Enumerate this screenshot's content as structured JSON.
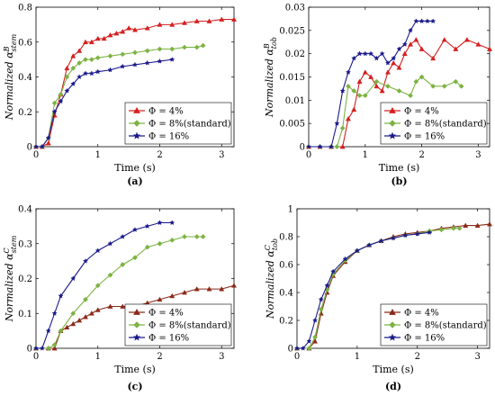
{
  "chart_data": [
    {
      "type": "line",
      "panel_label": "(a)",
      "xlabel": "Time (s)",
      "ylabel": "Normalized α",
      "ylabel_sup": "B",
      "ylabel_sub": "stem",
      "xlim": [
        0,
        3.2
      ],
      "ylim": [
        0,
        0.8
      ],
      "xticks": [
        "0",
        "1",
        "2",
        "3"
      ],
      "xtick_values": [
        0,
        1,
        2,
        3
      ],
      "yticks": [
        "0",
        "0.2",
        "0.4",
        "0.6",
        "0.8"
      ],
      "ytick_values": [
        0,
        0.2,
        0.4,
        0.6,
        0.8
      ],
      "legend_position": "bottom-right",
      "series": [
        {
          "name": "Φ = 4%",
          "color": "#d42020",
          "marker": "triangle",
          "x": [
            0,
            0.1,
            0.2,
            0.3,
            0.4,
            0.5,
            0.6,
            0.7,
            0.8,
            0.9,
            1.0,
            1.1,
            1.2,
            1.3,
            1.4,
            1.5,
            1.6,
            1.8,
            2.0,
            2.2,
            2.4,
            2.6,
            2.8,
            3.0,
            3.2
          ],
          "y": [
            0,
            0,
            0.02,
            0.18,
            0.3,
            0.45,
            0.52,
            0.55,
            0.6,
            0.6,
            0.62,
            0.62,
            0.64,
            0.65,
            0.66,
            0.68,
            0.67,
            0.68,
            0.7,
            0.7,
            0.71,
            0.72,
            0.72,
            0.73,
            0.73
          ]
        },
        {
          "name": "Φ = 8%(standard)",
          "color": "#7cb342",
          "marker": "diamond",
          "x": [
            0,
            0.1,
            0.2,
            0.3,
            0.4,
            0.5,
            0.6,
            0.7,
            0.8,
            0.9,
            1.0,
            1.2,
            1.4,
            1.6,
            1.8,
            2.0,
            2.2,
            2.4,
            2.6,
            2.7
          ],
          "y": [
            0,
            0,
            0.05,
            0.25,
            0.3,
            0.4,
            0.45,
            0.48,
            0.5,
            0.5,
            0.51,
            0.52,
            0.53,
            0.54,
            0.55,
            0.56,
            0.56,
            0.57,
            0.57,
            0.58
          ]
        },
        {
          "name": "Φ = 16%",
          "color": "#1a1a8c",
          "marker": "star",
          "x": [
            0,
            0.1,
            0.2,
            0.3,
            0.4,
            0.5,
            0.6,
            0.7,
            0.8,
            0.9,
            1.0,
            1.2,
            1.4,
            1.6,
            1.8,
            2.0,
            2.2
          ],
          "y": [
            0,
            0,
            0.05,
            0.2,
            0.26,
            0.32,
            0.36,
            0.4,
            0.42,
            0.42,
            0.43,
            0.44,
            0.46,
            0.47,
            0.48,
            0.49,
            0.5
          ]
        }
      ]
    },
    {
      "type": "line",
      "panel_label": "(b)",
      "xlabel": "Time (s)",
      "ylabel": "Normalized α",
      "ylabel_sup": "B",
      "ylabel_sub": "tob",
      "xlim": [
        0,
        3.2
      ],
      "ylim": [
        0,
        0.03
      ],
      "xticks": [
        "0",
        "1",
        "2",
        "3"
      ],
      "xtick_values": [
        0,
        1,
        2,
        3
      ],
      "yticks": [
        "0",
        "0.005",
        "0.01",
        "0.015",
        "0.02",
        "0.025",
        "0.03"
      ],
      "ytick_values": [
        0,
        0.005,
        0.01,
        0.015,
        0.02,
        0.025,
        0.03
      ],
      "legend_position": "bottom-right",
      "series": [
        {
          "name": "Φ = 4%",
          "color": "#d42020",
          "marker": "triangle",
          "x": [
            0,
            0.2,
            0.4,
            0.6,
            0.7,
            0.8,
            0.9,
            1.0,
            1.1,
            1.2,
            1.3,
            1.4,
            1.5,
            1.6,
            1.7,
            1.8,
            1.9,
            2.0,
            2.2,
            2.4,
            2.6,
            2.8,
            3.0,
            3.2
          ],
          "y": [
            0,
            0,
            0,
            0,
            0.006,
            0.008,
            0.014,
            0.016,
            0.015,
            0.013,
            0.012,
            0.016,
            0.018,
            0.017,
            0.02,
            0.022,
            0.023,
            0.021,
            0.019,
            0.023,
            0.021,
            0.023,
            0.022,
            0.021
          ]
        },
        {
          "name": "Φ = 8%(standard)",
          "color": "#7cb342",
          "marker": "diamond",
          "x": [
            0,
            0.2,
            0.4,
            0.5,
            0.6,
            0.7,
            0.8,
            0.9,
            1.0,
            1.2,
            1.4,
            1.6,
            1.8,
            1.9,
            2.0,
            2.2,
            2.4,
            2.6,
            2.7
          ],
          "y": [
            0,
            0,
            0,
            0,
            0.004,
            0.013,
            0.012,
            0.011,
            0.011,
            0.014,
            0.013,
            0.012,
            0.011,
            0.014,
            0.015,
            0.013,
            0.013,
            0.014,
            0.013
          ]
        },
        {
          "name": "Φ = 16%",
          "color": "#1a1a8c",
          "marker": "star",
          "x": [
            0,
            0.2,
            0.4,
            0.5,
            0.6,
            0.7,
            0.8,
            0.9,
            1.0,
            1.1,
            1.2,
            1.3,
            1.4,
            1.5,
            1.6,
            1.7,
            1.8,
            1.9,
            2.0,
            2.1,
            2.2
          ],
          "y": [
            0,
            0,
            0,
            0.005,
            0.012,
            0.016,
            0.019,
            0.02,
            0.02,
            0.02,
            0.019,
            0.02,
            0.018,
            0.019,
            0.021,
            0.022,
            0.025,
            0.027,
            0.027,
            0.027,
            0.027
          ]
        }
      ]
    },
    {
      "type": "line",
      "panel_label": "(c)",
      "xlabel": "Time (s)",
      "ylabel": "Normalized α",
      "ylabel_sup": "C",
      "ylabel_sub": "stem",
      "xlim": [
        0,
        3.2
      ],
      "ylim": [
        0,
        0.4
      ],
      "xticks": [
        "0",
        "1",
        "2",
        "3"
      ],
      "xtick_values": [
        0,
        1,
        2,
        3
      ],
      "yticks": [
        "0",
        "0.1",
        "0.2",
        "0.3",
        "0.4"
      ],
      "ytick_values": [
        0,
        0.1,
        0.2,
        0.3,
        0.4
      ],
      "legend_position": "bottom-right",
      "series": [
        {
          "name": "Φ = 4%",
          "color": "#8b2a1a",
          "marker": "triangle",
          "x": [
            0,
            0.2,
            0.3,
            0.4,
            0.5,
            0.6,
            0.7,
            0.8,
            0.9,
            1.0,
            1.2,
            1.4,
            1.6,
            1.8,
            2.0,
            2.2,
            2.4,
            2.6,
            2.8,
            3.0,
            3.2
          ],
          "y": [
            0,
            0,
            0,
            0.05,
            0.06,
            0.07,
            0.08,
            0.09,
            0.1,
            0.11,
            0.12,
            0.12,
            0.12,
            0.13,
            0.14,
            0.15,
            0.16,
            0.17,
            0.17,
            0.17,
            0.18
          ]
        },
        {
          "name": "Φ = 8%(standard)",
          "color": "#7cb342",
          "marker": "diamond",
          "x": [
            0,
            0.2,
            0.3,
            0.4,
            0.6,
            0.8,
            1.0,
            1.2,
            1.4,
            1.6,
            1.8,
            2.0,
            2.2,
            2.4,
            2.6,
            2.7
          ],
          "y": [
            0,
            0,
            0.01,
            0.05,
            0.1,
            0.14,
            0.18,
            0.21,
            0.24,
            0.26,
            0.29,
            0.3,
            0.31,
            0.32,
            0.32,
            0.32
          ]
        },
        {
          "name": "Φ = 16%",
          "color": "#1a1a8c",
          "marker": "star",
          "x": [
            0,
            0.1,
            0.2,
            0.3,
            0.4,
            0.6,
            0.8,
            1.0,
            1.2,
            1.4,
            1.6,
            1.8,
            2.0,
            2.2
          ],
          "y": [
            0,
            0,
            0.05,
            0.1,
            0.15,
            0.2,
            0.25,
            0.28,
            0.3,
            0.32,
            0.34,
            0.35,
            0.36,
            0.36
          ]
        }
      ]
    },
    {
      "type": "line",
      "panel_label": "(d)",
      "xlabel": "Time (s)",
      "ylabel": "Normalized α",
      "ylabel_sup": "C",
      "ylabel_sub": "tob",
      "xlim": [
        0,
        3.2
      ],
      "ylim": [
        0,
        1
      ],
      "xticks": [
        "0",
        "1",
        "2",
        "3"
      ],
      "xtick_values": [
        0,
        1,
        2,
        3
      ],
      "yticks": [
        "0",
        "0.2",
        "0.4",
        "0.6",
        "0.8",
        "1"
      ],
      "ytick_values": [
        0,
        0.2,
        0.4,
        0.6,
        0.8,
        1
      ],
      "legend_position": "bottom-right",
      "series": [
        {
          "name": "Φ = 4%",
          "color": "#8b2a1a",
          "marker": "triangle",
          "x": [
            0,
            0.2,
            0.3,
            0.4,
            0.5,
            0.6,
            0.8,
            1.0,
            1.2,
            1.4,
            1.6,
            1.8,
            2.0,
            2.2,
            2.4,
            2.6,
            2.8,
            3.0,
            3.2
          ],
          "y": [
            0,
            0,
            0.05,
            0.25,
            0.4,
            0.52,
            0.62,
            0.7,
            0.74,
            0.77,
            0.8,
            0.82,
            0.83,
            0.84,
            0.86,
            0.87,
            0.88,
            0.88,
            0.89
          ]
        },
        {
          "name": "Φ = 8%(standard)",
          "color": "#7cb342",
          "marker": "diamond",
          "x": [
            0,
            0.2,
            0.3,
            0.4,
            0.5,
            0.6,
            0.8,
            1.0,
            1.2,
            1.4,
            1.6,
            1.8,
            2.0,
            2.2,
            2.4,
            2.6,
            2.7
          ],
          "y": [
            0,
            0,
            0.08,
            0.28,
            0.42,
            0.53,
            0.63,
            0.7,
            0.74,
            0.77,
            0.79,
            0.81,
            0.82,
            0.84,
            0.85,
            0.86,
            0.86
          ]
        },
        {
          "name": "Φ = 16%",
          "color": "#1a1a8c",
          "marker": "star",
          "x": [
            0,
            0.1,
            0.2,
            0.3,
            0.4,
            0.5,
            0.6,
            0.8,
            1.0,
            1.2,
            1.4,
            1.6,
            1.8,
            2.0,
            2.2
          ],
          "y": [
            0,
            0,
            0.05,
            0.2,
            0.35,
            0.45,
            0.55,
            0.64,
            0.7,
            0.74,
            0.77,
            0.79,
            0.81,
            0.82,
            0.83
          ]
        }
      ]
    }
  ]
}
